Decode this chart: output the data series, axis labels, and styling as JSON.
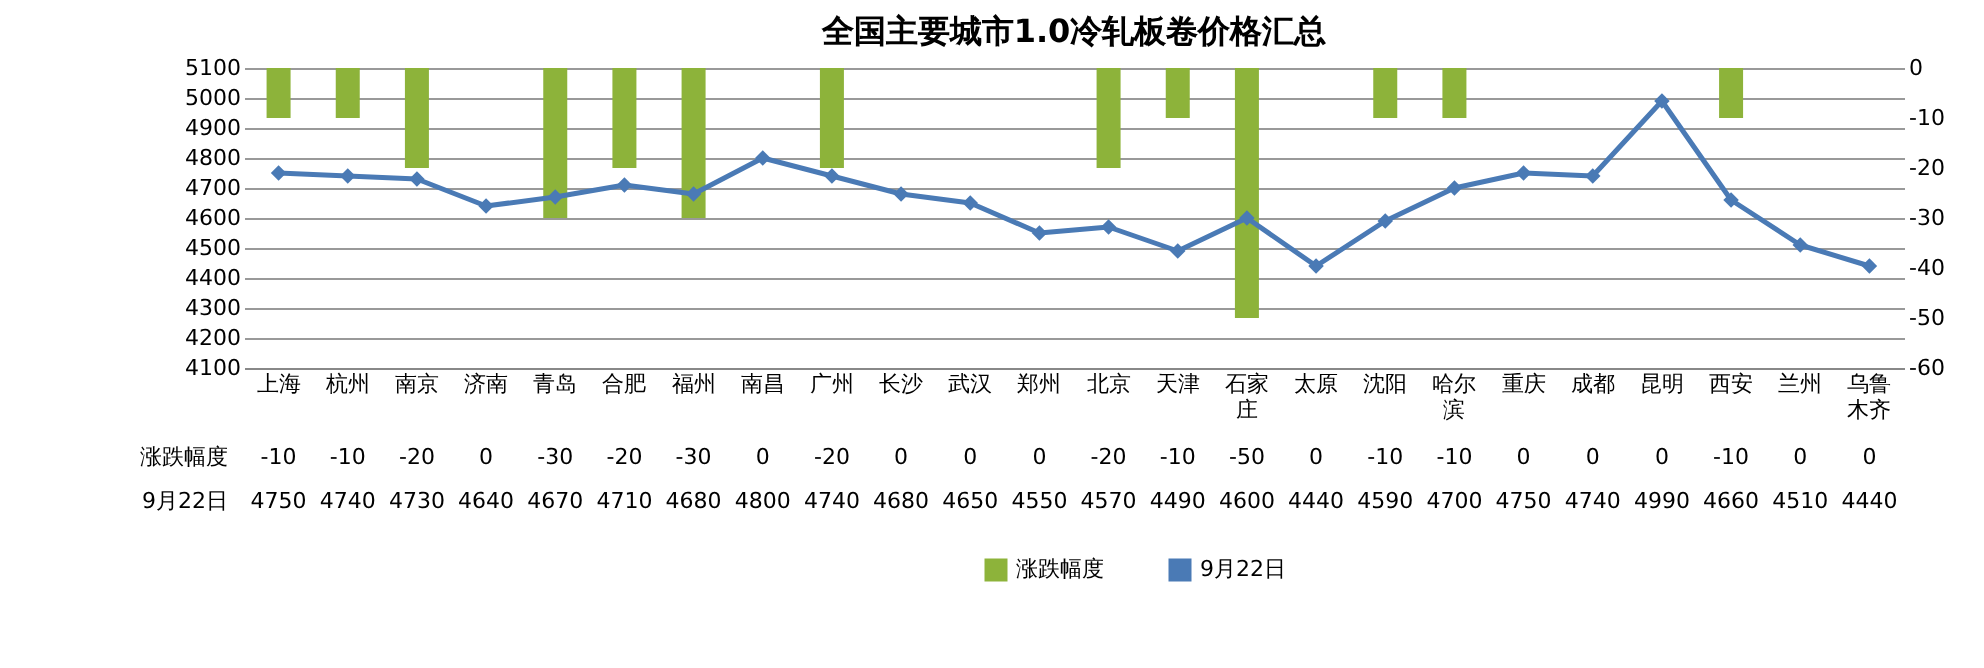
{
  "chart_data": {
    "type": "bar",
    "title": "全国主要城市1.0冷轧板卷价格汇总",
    "categories": [
      "上海",
      "杭州",
      "南京",
      "济南",
      "青岛",
      "合肥",
      "福州",
      "南昌",
      "广州",
      "长沙",
      "武汉",
      "郑州",
      "北京",
      "天津",
      "石家庄",
      "太原",
      "沈阳",
      "哈尔滨",
      "重庆",
      "成都",
      "昆明",
      "西安",
      "兰州",
      "乌鲁木齐"
    ],
    "series": [
      {
        "name": "涨跌幅度",
        "axis": "y2",
        "color": "#8db33a",
        "values": [
          -10,
          -10,
          -20,
          0,
          -30,
          -20,
          -30,
          0,
          -20,
          0,
          0,
          0,
          -20,
          -10,
          -50,
          0,
          -10,
          -10,
          0,
          0,
          0,
          -10,
          0,
          0
        ]
      },
      {
        "name": "9月22日",
        "type": "line",
        "color": "#4a7ab5",
        "marker": "diamond",
        "values": [
          4750,
          4740,
          4730,
          4640,
          4670,
          4710,
          4680,
          4800,
          4740,
          4680,
          4650,
          4550,
          4570,
          4490,
          4600,
          4440,
          4590,
          4700,
          4750,
          4740,
          4990,
          4660,
          4510,
          4440
        ]
      }
    ],
    "ylim": [
      4100,
      5100
    ],
    "yticks": [
      4100,
      4200,
      4300,
      4400,
      4500,
      4600,
      4700,
      4800,
      4900,
      5000,
      5100
    ],
    "y2lim": [
      -60,
      0
    ],
    "y2ticks": [
      -60,
      -50,
      -40,
      -30,
      -20,
      -10,
      0
    ],
    "grid": "y",
    "legend": "bottom",
    "data_labels": true
  }
}
